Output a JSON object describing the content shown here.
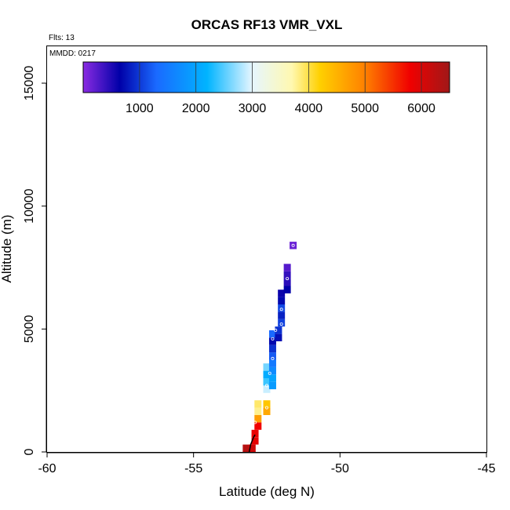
{
  "chart_data": {
    "type": "heatmap",
    "title": "ORCAS RF13 VMR_VXL",
    "flights_label": "Flts: 13",
    "date_label": "MMDD: 0217",
    "xlabel": "Latitude (deg N)",
    "ylabel": "Altitude (m)",
    "xlim": [
      -60,
      -45
    ],
    "ylim": [
      0,
      16500
    ],
    "x_ticks": [
      -60,
      -55,
      -50,
      -45
    ],
    "y_ticks": [
      0,
      5000,
      10000,
      15000
    ],
    "colorbar": {
      "range": [
        0,
        6500
      ],
      "ticks": [
        1000,
        2000,
        3000,
        4000,
        5000,
        6000
      ],
      "colors": [
        "#8a2be2",
        "#0000a8",
        "#1a6aff",
        "#00b4ff",
        "#e6f6ff",
        "#fff8b0",
        "#ffd000",
        "#ff8000",
        "#f00000",
        "#a01818"
      ],
      "stops": [
        0,
        650,
        1300,
        2200,
        3000,
        3700,
        4200,
        5000,
        5800,
        6500
      ]
    },
    "cells": [
      {
        "lat": -53.2,
        "alt": 150,
        "value": 6300
      },
      {
        "lat": -53.0,
        "alt": 150,
        "value": 6100
      },
      {
        "lat": -52.9,
        "alt": 450,
        "value": 5900
      },
      {
        "lat": -52.9,
        "alt": 750,
        "value": 5850
      },
      {
        "lat": -52.8,
        "alt": 1050,
        "value": 5800
      },
      {
        "lat": -52.8,
        "alt": 1350,
        "value": 4700
      },
      {
        "lat": -52.8,
        "alt": 1650,
        "value": 3800
      },
      {
        "lat": -52.8,
        "alt": 1950,
        "value": 3900
      },
      {
        "lat": -52.5,
        "alt": 1650,
        "value": 4600
      },
      {
        "lat": -52.5,
        "alt": 1950,
        "value": 4300
      },
      {
        "lat": -52.5,
        "alt": 2550,
        "value": 2900
      },
      {
        "lat": -52.5,
        "alt": 2850,
        "value": 2400
      },
      {
        "lat": -52.5,
        "alt": 3150,
        "value": 2100
      },
      {
        "lat": -52.5,
        "alt": 3450,
        "value": 2600
      },
      {
        "lat": -52.3,
        "alt": 2700,
        "value": 1900
      },
      {
        "lat": -52.3,
        "alt": 3000,
        "value": 2000
      },
      {
        "lat": -52.3,
        "alt": 3300,
        "value": 1700
      },
      {
        "lat": -52.3,
        "alt": 3600,
        "value": 1500
      },
      {
        "lat": -52.3,
        "alt": 3900,
        "value": 1200
      },
      {
        "lat": -52.3,
        "alt": 4200,
        "value": 950
      },
      {
        "lat": -52.3,
        "alt": 4500,
        "value": 700
      },
      {
        "lat": -52.3,
        "alt": 4800,
        "value": 1300
      },
      {
        "lat": -52.1,
        "alt": 4650,
        "value": 750
      },
      {
        "lat": -52.1,
        "alt": 4950,
        "value": 950
      },
      {
        "lat": -52.0,
        "alt": 5250,
        "value": 1050
      },
      {
        "lat": -52.0,
        "alt": 5550,
        "value": 850
      },
      {
        "lat": -52.0,
        "alt": 5850,
        "value": 1100
      },
      {
        "lat": -52.0,
        "alt": 6150,
        "value": 700
      },
      {
        "lat": -52.0,
        "alt": 6450,
        "value": 600
      },
      {
        "lat": -51.8,
        "alt": 6600,
        "value": 650
      },
      {
        "lat": -51.8,
        "alt": 6900,
        "value": 450
      },
      {
        "lat": -51.8,
        "alt": 7200,
        "value": 400
      },
      {
        "lat": -51.8,
        "alt": 7500,
        "value": 250
      },
      {
        "lat": -51.6,
        "alt": 8400,
        "value": 150
      }
    ],
    "points": [
      {
        "lat": -52.3,
        "alt": 4600
      },
      {
        "lat": -52.2,
        "alt": 4950
      },
      {
        "lat": -52.0,
        "alt": 5200
      },
      {
        "lat": -52.0,
        "alt": 5800
      },
      {
        "lat": -51.8,
        "alt": 7050
      },
      {
        "lat": -51.6,
        "alt": 8400
      },
      {
        "lat": -52.5,
        "alt": 2700
      },
      {
        "lat": -52.4,
        "alt": 3200
      },
      {
        "lat": -52.3,
        "alt": 3800
      },
      {
        "lat": -52.5,
        "alt": 1800
      },
      {
        "lat": -52.9,
        "alt": 1200
      }
    ],
    "track": [
      {
        "lat": -53.1,
        "alt": 0
      },
      {
        "lat": -53.05,
        "alt": 300
      },
      {
        "lat": -52.95,
        "alt": 600
      },
      {
        "lat": -52.9,
        "alt": 700
      }
    ]
  }
}
